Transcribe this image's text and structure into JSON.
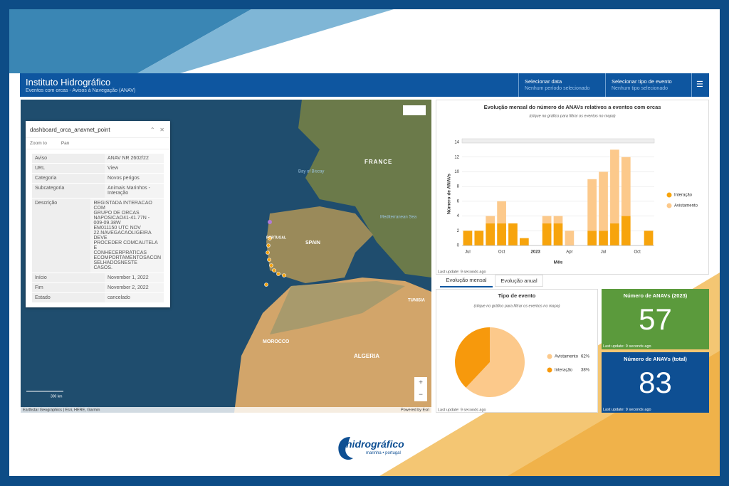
{
  "header": {
    "title": "Instituto Hidrográfico",
    "subtitle": "Eventos com orcas - Avisos à Navegação (ANAV)",
    "filters": [
      {
        "label": "Selecionar data",
        "value": "Nenhum período selecionado"
      },
      {
        "label": "Selecionar tipo de evento",
        "value": "Nenhum tipo selecionado"
      }
    ]
  },
  "map": {
    "labels": [
      "FRANCE",
      "SPAIN",
      "PORTUGAL",
      "MOROCCO",
      "ALGERIA",
      "TUNISIA",
      "Mediterranean Sea",
      "Bay of Biscay"
    ],
    "scale": "300 km",
    "attribution": "Earthstar Geographics | Esri, HERE, Garmin",
    "powered": "Powered by Esri"
  },
  "popup": {
    "title": "dashboard_orca_anavnet_point",
    "tools": [
      "Zoom to",
      "Pan"
    ],
    "rows": [
      [
        "Aviso",
        "ANAV NR 2602/22"
      ],
      [
        "URL",
        "View"
      ],
      [
        "Categoria",
        "Novos perigos"
      ],
      [
        "Subcategoria",
        "Animais Marinhos - Interação"
      ],
      [
        "Descrição",
        "REGISTADA INTERACAO\nCOM\nGRUPO DE ORCAS\nNAPOSICAO41-41.77N -\n009-09.38W\nEM011150 UTC NOV\n22.NAVEGACAOLIGEIRA\nDEVE\nPROCEDER COMCAUTELA E\nCONHECERPRATICAS\nECOMPORTAMENTOSACON\nSELHADOSNESTE\nCASOS."
      ],
      [
        "Início",
        "November 1, 2022"
      ],
      [
        "Fim",
        "November 2, 2022"
      ],
      [
        "Estado",
        "cancelado"
      ]
    ]
  },
  "chart_data": [
    {
      "type": "bar",
      "title": "Evolução mensal do número de ANAVs relativos a eventos com orcas",
      "subtitle": "(clique no gráfico para filtrar os eventos no mapa)",
      "x_label": "Mês",
      "y_label": "Número de ANAVs",
      "stacked": true,
      "grid": true,
      "categories": [
        "Jul",
        null,
        null,
        "Oct",
        null,
        null,
        "2023",
        null,
        null,
        "Apr",
        null,
        null,
        "Jul",
        null,
        null,
        "Oct",
        null
      ],
      "series": [
        {
          "name": "Interação",
          "color": "#f7a40c",
          "values": [
            2,
            2,
            3,
            3,
            3,
            1,
            0,
            3,
            3,
            0,
            0,
            2,
            2,
            3,
            4,
            0,
            2
          ]
        },
        {
          "name": "Avistamento",
          "color": "#fcc98b",
          "values": [
            0,
            0,
            1,
            3,
            0,
            0,
            0,
            1,
            1,
            2,
            0,
            7,
            8,
            10,
            8,
            0,
            0
          ]
        }
      ],
      "ylim": [
        0,
        14
      ],
      "yticks": [
        0,
        2,
        4,
        6,
        8,
        10,
        12,
        14
      ],
      "footer": "Last update: 9 seconds ago"
    },
    {
      "type": "pie",
      "title": "Tipo de evento",
      "subtitle": "(clique no gráfico para filtrar os eventos no mapa)",
      "categories": [
        "Avistamento",
        "Interação"
      ],
      "values": [
        62,
        38
      ],
      "value_labels": [
        "62%",
        "38%"
      ],
      "colors": [
        "#fcc98b",
        "#f7990c"
      ],
      "footer": "Last update: 9 seconds ago"
    }
  ],
  "tabs": [
    "Evolução mensal",
    "Evolução anual"
  ],
  "kpis": [
    {
      "title": "Número de ANAVs (2023)",
      "value": 57,
      "color": "#5b9a3c",
      "footer": "Last update: 9 seconds ago"
    },
    {
      "title": "Número de ANAVs (total)",
      "value": 83,
      "color": "#0e4f93",
      "footer": "Last update: 9 seconds ago"
    }
  ],
  "logo": {
    "name": "hidrográfico",
    "tagline": "marinha • portugal"
  }
}
